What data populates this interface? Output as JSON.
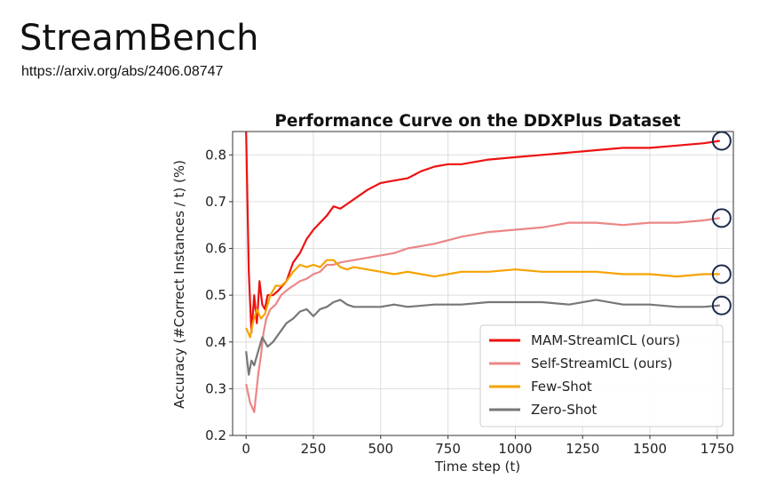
{
  "slide": {
    "title": "StreamBench",
    "link": "https://arxiv.org/abs/2406.08747"
  },
  "chart_data": {
    "type": "line",
    "title": "Performance Curve on the DDXPlus Dataset",
    "xlabel": "Time step (t)",
    "ylabel": "Accuracy (#Correct Instances / t) (%)",
    "xlim": [
      -50,
      1810
    ],
    "ylim": [
      0.2,
      0.85
    ],
    "xticks": [
      0,
      250,
      500,
      750,
      1000,
      1250,
      1500,
      1750
    ],
    "yticks": [
      0.2,
      0.3,
      0.4,
      0.5,
      0.6,
      0.7,
      0.8
    ],
    "xtick_labels": [
      "0",
      "250",
      "500",
      "750",
      "1000",
      "1250",
      "1500",
      "1750"
    ],
    "ytick_labels": [
      "0.2",
      "0.3",
      "0.4",
      "0.5",
      "0.6",
      "0.7",
      "0.8"
    ],
    "grid": true,
    "legend_position": "lower-right",
    "series": [
      {
        "name": "MAM-StreamICL (ours)",
        "color": "#ee1111",
        "x": [
          0,
          10,
          20,
          30,
          40,
          50,
          60,
          70,
          80,
          100,
          120,
          150,
          175,
          200,
          225,
          250,
          275,
          300,
          325,
          350,
          375,
          400,
          450,
          500,
          550,
          600,
          650,
          700,
          750,
          800,
          850,
          900,
          1000,
          1100,
          1200,
          1300,
          1400,
          1500,
          1600,
          1700,
          1760
        ],
        "y": [
          0.85,
          0.55,
          0.42,
          0.5,
          0.44,
          0.53,
          0.48,
          0.47,
          0.5,
          0.5,
          0.51,
          0.53,
          0.57,
          0.59,
          0.62,
          0.64,
          0.655,
          0.67,
          0.69,
          0.685,
          0.695,
          0.705,
          0.725,
          0.74,
          0.745,
          0.75,
          0.765,
          0.775,
          0.78,
          0.78,
          0.785,
          0.79,
          0.795,
          0.8,
          0.805,
          0.81,
          0.815,
          0.815,
          0.82,
          0.825,
          0.83
        ]
      },
      {
        "name": "Self-StreamICL (ours)",
        "color": "#ec8686",
        "x": [
          0,
          15,
          30,
          45,
          55,
          65,
          75,
          90,
          110,
          130,
          150,
          175,
          200,
          225,
          250,
          275,
          300,
          325,
          350,
          400,
          450,
          500,
          550,
          600,
          650,
          700,
          800,
          900,
          1000,
          1100,
          1200,
          1300,
          1400,
          1500,
          1600,
          1700,
          1760
        ],
        "y": [
          0.31,
          0.27,
          0.25,
          0.33,
          0.37,
          0.42,
          0.45,
          0.47,
          0.48,
          0.5,
          0.51,
          0.52,
          0.53,
          0.535,
          0.545,
          0.55,
          0.565,
          0.565,
          0.57,
          0.575,
          0.58,
          0.585,
          0.59,
          0.6,
          0.605,
          0.61,
          0.625,
          0.635,
          0.64,
          0.645,
          0.655,
          0.655,
          0.65,
          0.655,
          0.655,
          0.66,
          0.665
        ]
      },
      {
        "name": "Few-Shot",
        "color": "#f5a300",
        "x": [
          0,
          15,
          25,
          40,
          55,
          70,
          90,
          110,
          130,
          150,
          175,
          200,
          225,
          250,
          275,
          300,
          325,
          350,
          375,
          400,
          450,
          500,
          550,
          600,
          650,
          700,
          750,
          800,
          900,
          1000,
          1100,
          1200,
          1300,
          1400,
          1500,
          1600,
          1700,
          1760
        ],
        "y": [
          0.43,
          0.41,
          0.44,
          0.47,
          0.45,
          0.46,
          0.5,
          0.52,
          0.52,
          0.53,
          0.55,
          0.565,
          0.56,
          0.565,
          0.56,
          0.575,
          0.575,
          0.56,
          0.555,
          0.56,
          0.555,
          0.55,
          0.545,
          0.55,
          0.545,
          0.54,
          0.545,
          0.55,
          0.55,
          0.555,
          0.55,
          0.55,
          0.55,
          0.545,
          0.545,
          0.54,
          0.545,
          0.545
        ]
      },
      {
        "name": "Zero-Shot",
        "color": "#777777",
        "x": [
          0,
          10,
          20,
          30,
          45,
          60,
          80,
          100,
          125,
          150,
          175,
          200,
          225,
          250,
          275,
          300,
          325,
          350,
          375,
          400,
          450,
          500,
          550,
          600,
          700,
          800,
          900,
          1000,
          1100,
          1200,
          1300,
          1400,
          1500,
          1600,
          1700,
          1760
        ],
        "y": [
          0.38,
          0.33,
          0.36,
          0.35,
          0.38,
          0.41,
          0.39,
          0.4,
          0.42,
          0.44,
          0.45,
          0.465,
          0.47,
          0.455,
          0.47,
          0.475,
          0.485,
          0.49,
          0.48,
          0.475,
          0.475,
          0.475,
          0.48,
          0.475,
          0.48,
          0.48,
          0.485,
          0.485,
          0.485,
          0.48,
          0.49,
          0.48,
          0.48,
          0.475,
          0.475,
          0.478
        ]
      }
    ],
    "annotations": [
      {
        "type": "circle-marker",
        "x": 1760,
        "y": 0.83
      },
      {
        "type": "circle-marker",
        "x": 1760,
        "y": 0.665
      },
      {
        "type": "circle-marker",
        "x": 1760,
        "y": 0.545
      },
      {
        "type": "circle-marker",
        "x": 1760,
        "y": 0.478
      }
    ],
    "marker_color": "#1b2a4a"
  }
}
